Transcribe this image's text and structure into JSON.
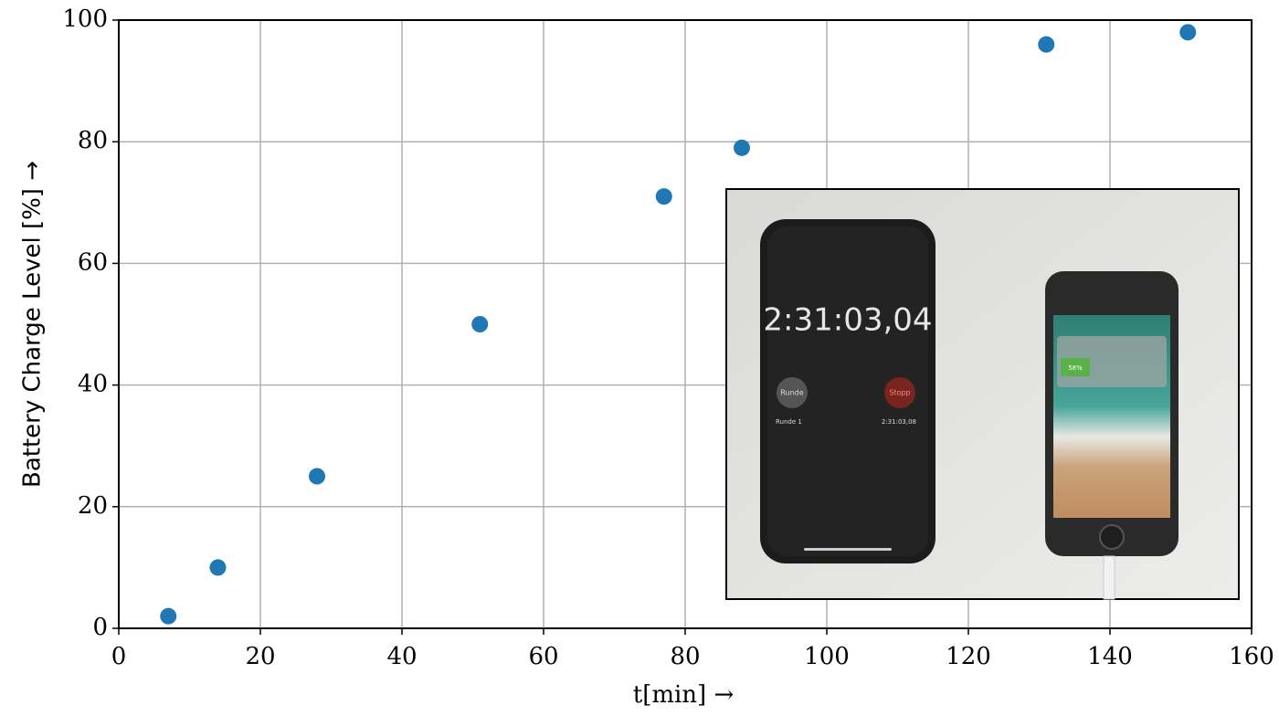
{
  "chart_data": {
    "type": "scatter",
    "xlabel": "t[min] →",
    "ylabel": "Battery Charge Level [%] →",
    "x": [
      7,
      14,
      28,
      51,
      77,
      88,
      131,
      151
    ],
    "values": [
      2,
      10,
      25,
      50,
      71,
      79,
      96,
      98
    ],
    "color": "#1f77b4",
    "xlim": [
      0,
      160
    ],
    "xticks": [
      0,
      20,
      40,
      60,
      80,
      100,
      120,
      140,
      160
    ],
    "ylim": [
      0,
      100
    ],
    "yticks": [
      0,
      20,
      40,
      60,
      80,
      100
    ],
    "grid": true,
    "inset": {
      "stopwatch": "2:31:03,04",
      "lap_button": "Runde",
      "stop_button": "Stopp",
      "lap_name": "Runde 1",
      "lap_time": "2:31:03,08",
      "battery": "58%"
    }
  }
}
